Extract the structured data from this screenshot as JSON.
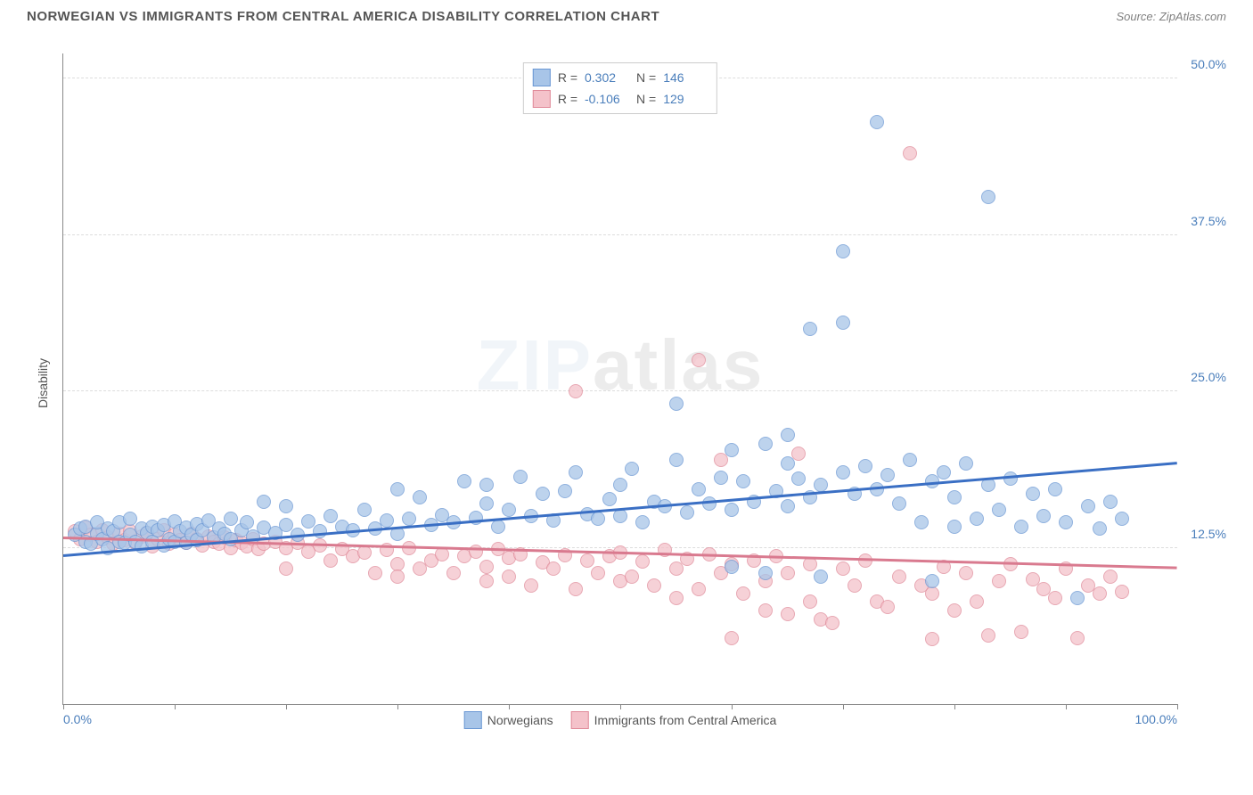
{
  "header": {
    "title": "NORWEGIAN VS IMMIGRANTS FROM CENTRAL AMERICA DISABILITY CORRELATION CHART",
    "source": "Source: ZipAtlas.com"
  },
  "watermark": {
    "left": "ZIP",
    "right": "atlas"
  },
  "chart": {
    "type": "scatter",
    "ylabel": "Disability",
    "xaxis": {
      "min": 0,
      "max": 100,
      "label_left": "0.0%",
      "label_right": "100.0%",
      "ticks": [
        0,
        10,
        20,
        30,
        40,
        50,
        60,
        70,
        80,
        90,
        100
      ]
    },
    "yaxis": {
      "min": 0,
      "max": 52,
      "ticks": [
        {
          "v": 12.5,
          "label": "12.5%"
        },
        {
          "v": 25.0,
          "label": "25.0%"
        },
        {
          "v": 37.5,
          "label": "37.5%"
        },
        {
          "v": 50.0,
          "label": "50.0%"
        }
      ]
    },
    "colors": {
      "series_a_fill": "#a8c5e8",
      "series_a_stroke": "#6b98d4",
      "series_b_fill": "#f4c2ca",
      "series_b_stroke": "#e08b9a",
      "trend_a": "#3a6fc4",
      "trend_b": "#d97a8f",
      "axis_text": "#4a7ebb",
      "grid": "#dddddd"
    },
    "stats": [
      {
        "series": "a",
        "R": "0.302",
        "N": "146"
      },
      {
        "series": "b",
        "R": "-0.106",
        "N": "129"
      }
    ],
    "legend": [
      {
        "series": "a",
        "label": "Norwegians"
      },
      {
        "series": "b",
        "label": "Immigrants from Central America"
      }
    ],
    "trendlines": {
      "a": {
        "y_at_x0": 11.8,
        "y_at_x100": 19.2
      },
      "b": {
        "y_at_x0": 13.2,
        "y_at_x100": 10.8
      }
    },
    "series_a": [
      [
        1,
        13.5
      ],
      [
        1.5,
        14
      ],
      [
        2,
        13
      ],
      [
        2,
        14.2
      ],
      [
        2.5,
        12.8
      ],
      [
        3,
        13.6
      ],
      [
        3,
        14.5
      ],
      [
        3.5,
        13.2
      ],
      [
        4,
        14
      ],
      [
        4,
        12.5
      ],
      [
        4.5,
        13.8
      ],
      [
        5,
        13
      ],
      [
        5,
        14.5
      ],
      [
        5.5,
        12.9
      ],
      [
        6,
        13.5
      ],
      [
        6,
        14.8
      ],
      [
        6.5,
        13
      ],
      [
        7,
        14
      ],
      [
        7,
        12.6
      ],
      [
        7.5,
        13.7
      ],
      [
        8,
        14.2
      ],
      [
        8,
        13
      ],
      [
        8.5,
        13.9
      ],
      [
        9,
        12.7
      ],
      [
        9,
        14.3
      ],
      [
        9.5,
        13.2
      ],
      [
        10,
        14.6
      ],
      [
        10,
        13
      ],
      [
        10.5,
        13.8
      ],
      [
        11,
        14.1
      ],
      [
        11,
        12.9
      ],
      [
        11.5,
        13.5
      ],
      [
        12,
        14.4
      ],
      [
        12,
        13.1
      ],
      [
        12.5,
        13.9
      ],
      [
        13,
        14.7
      ],
      [
        13.5,
        13.3
      ],
      [
        14,
        14
      ],
      [
        14.5,
        13.6
      ],
      [
        15,
        14.8
      ],
      [
        15,
        13.2
      ],
      [
        16,
        13.9
      ],
      [
        16.5,
        14.5
      ],
      [
        17,
        13.4
      ],
      [
        18,
        16.2
      ],
      [
        18,
        14.1
      ],
      [
        19,
        13.7
      ],
      [
        20,
        14.3
      ],
      [
        20,
        15.8
      ],
      [
        21,
        13.5
      ],
      [
        22,
        14.6
      ],
      [
        23,
        13.8
      ],
      [
        24,
        15
      ],
      [
        25,
        14.2
      ],
      [
        26,
        13.9
      ],
      [
        27,
        15.5
      ],
      [
        28,
        14
      ],
      [
        29,
        14.7
      ],
      [
        30,
        17.2
      ],
      [
        30,
        13.6
      ],
      [
        31,
        14.8
      ],
      [
        32,
        16.5
      ],
      [
        33,
        14.3
      ],
      [
        34,
        15.1
      ],
      [
        35,
        14.5
      ],
      [
        36,
        17.8
      ],
      [
        37,
        14.9
      ],
      [
        38,
        16
      ],
      [
        38,
        17.5
      ],
      [
        39,
        14.2
      ],
      [
        40,
        15.5
      ],
      [
        41,
        18.2
      ],
      [
        42,
        15
      ],
      [
        43,
        16.8
      ],
      [
        44,
        14.7
      ],
      [
        45,
        17
      ],
      [
        46,
        18.5
      ],
      [
        47,
        15.2
      ],
      [
        48,
        14.8
      ],
      [
        49,
        16.4
      ],
      [
        50,
        17.5
      ],
      [
        50,
        15
      ],
      [
        51,
        18.8
      ],
      [
        52,
        14.5
      ],
      [
        53,
        16.2
      ],
      [
        54,
        15.8
      ],
      [
        55,
        19.5
      ],
      [
        55,
        24
      ],
      [
        56,
        15.3
      ],
      [
        57,
        17.2
      ],
      [
        58,
        16
      ],
      [
        59,
        18.1
      ],
      [
        60,
        15.5
      ],
      [
        60,
        20.3
      ],
      [
        60,
        11
      ],
      [
        61,
        17.8
      ],
      [
        62,
        16.2
      ],
      [
        63,
        10.5
      ],
      [
        63,
        20.8
      ],
      [
        64,
        17
      ],
      [
        65,
        15.8
      ],
      [
        65,
        21.5
      ],
      [
        65,
        19.2
      ],
      [
        66,
        18
      ],
      [
        67,
        16.5
      ],
      [
        67,
        30
      ],
      [
        68,
        10.2
      ],
      [
        68,
        17.5
      ],
      [
        70,
        30.5
      ],
      [
        70,
        36.2
      ],
      [
        70,
        18.5
      ],
      [
        71,
        16.8
      ],
      [
        72,
        19
      ],
      [
        73,
        46.5
      ],
      [
        73,
        17.2
      ],
      [
        74,
        18.3
      ],
      [
        75,
        16
      ],
      [
        76,
        19.5
      ],
      [
        77,
        14.5
      ],
      [
        78,
        17.8
      ],
      [
        78,
        9.8
      ],
      [
        79,
        18.5
      ],
      [
        80,
        14.2
      ],
      [
        80,
        16.5
      ],
      [
        81,
        19.2
      ],
      [
        82,
        14.8
      ],
      [
        83,
        17.5
      ],
      [
        83,
        40.5
      ],
      [
        84,
        15.5
      ],
      [
        85,
        18
      ],
      [
        86,
        14.2
      ],
      [
        87,
        16.8
      ],
      [
        88,
        15
      ],
      [
        89,
        17.2
      ],
      [
        90,
        14.5
      ],
      [
        91,
        8.5
      ],
      [
        92,
        15.8
      ],
      [
        93,
        14
      ],
      [
        94,
        16.2
      ],
      [
        95,
        14.8
      ]
    ],
    "series_b": [
      [
        1,
        13.8
      ],
      [
        1.5,
        13.2
      ],
      [
        2,
        14.1
      ],
      [
        2.5,
        13.5
      ],
      [
        3,
        13
      ],
      [
        3.5,
        13.9
      ],
      [
        4,
        13.3
      ],
      [
        4.5,
        12.8
      ],
      [
        5,
        13.6
      ],
      [
        5.5,
        13.1
      ],
      [
        6,
        13.8
      ],
      [
        6.5,
        12.9
      ],
      [
        7,
        13.4
      ],
      [
        7.5,
        13.7
      ],
      [
        8,
        12.6
      ],
      [
        8.5,
        13.2
      ],
      [
        9,
        13.9
      ],
      [
        9.5,
        12.8
      ],
      [
        10,
        13.5
      ],
      [
        10.5,
        13.1
      ],
      [
        11,
        12.9
      ],
      [
        11.5,
        13.6
      ],
      [
        12,
        13.2
      ],
      [
        12.5,
        12.7
      ],
      [
        13,
        13.4
      ],
      [
        13.5,
        13
      ],
      [
        14,
        12.8
      ],
      [
        14.5,
        13.3
      ],
      [
        15,
        12.5
      ],
      [
        15.5,
        13.1
      ],
      [
        16,
        12.9
      ],
      [
        16.5,
        12.6
      ],
      [
        17,
        13.2
      ],
      [
        17.5,
        12.4
      ],
      [
        18,
        12.8
      ],
      [
        19,
        13
      ],
      [
        20,
        12.5
      ],
      [
        20,
        10.8
      ],
      [
        21,
        12.9
      ],
      [
        22,
        12.2
      ],
      [
        23,
        12.7
      ],
      [
        24,
        11.5
      ],
      [
        25,
        12.4
      ],
      [
        26,
        11.8
      ],
      [
        27,
        12.1
      ],
      [
        28,
        10.5
      ],
      [
        29,
        12.3
      ],
      [
        30,
        11.2
      ],
      [
        30,
        10.2
      ],
      [
        31,
        12.5
      ],
      [
        32,
        10.8
      ],
      [
        33,
        11.5
      ],
      [
        34,
        12
      ],
      [
        35,
        10.5
      ],
      [
        36,
        11.8
      ],
      [
        37,
        12.2
      ],
      [
        38,
        9.8
      ],
      [
        38,
        11
      ],
      [
        39,
        12.4
      ],
      [
        40,
        10.2
      ],
      [
        40,
        11.7
      ],
      [
        41,
        12
      ],
      [
        42,
        9.5
      ],
      [
        43,
        11.3
      ],
      [
        44,
        10.8
      ],
      [
        45,
        11.9
      ],
      [
        46,
        9.2
      ],
      [
        46,
        25
      ],
      [
        47,
        11.5
      ],
      [
        48,
        10.5
      ],
      [
        49,
        11.8
      ],
      [
        50,
        9.8
      ],
      [
        50,
        12.1
      ],
      [
        51,
        10.2
      ],
      [
        52,
        11.4
      ],
      [
        53,
        9.5
      ],
      [
        54,
        12.3
      ],
      [
        55,
        10.8
      ],
      [
        55,
        8.5
      ],
      [
        56,
        11.6
      ],
      [
        57,
        9.2
      ],
      [
        57,
        27.5
      ],
      [
        58,
        12
      ],
      [
        59,
        10.5
      ],
      [
        59,
        19.5
      ],
      [
        60,
        5.3
      ],
      [
        60,
        11.2
      ],
      [
        61,
        8.8
      ],
      [
        62,
        11.5
      ],
      [
        63,
        7.5
      ],
      [
        63,
        9.8
      ],
      [
        64,
        11.8
      ],
      [
        65,
        7.2
      ],
      [
        65,
        10.5
      ],
      [
        66,
        20
      ],
      [
        67,
        8.2
      ],
      [
        67,
        11.2
      ],
      [
        68,
        6.8
      ],
      [
        69,
        6.5
      ],
      [
        70,
        10.8
      ],
      [
        71,
        9.5
      ],
      [
        72,
        11.5
      ],
      [
        73,
        8.2
      ],
      [
        74,
        7.8
      ],
      [
        75,
        10.2
      ],
      [
        76,
        44
      ],
      [
        77,
        9.5
      ],
      [
        78,
        8.8
      ],
      [
        78,
        5.2
      ],
      [
        79,
        11
      ],
      [
        80,
        7.5
      ],
      [
        81,
        10.5
      ],
      [
        82,
        8.2
      ],
      [
        83,
        5.5
      ],
      [
        84,
        9.8
      ],
      [
        85,
        11.2
      ],
      [
        86,
        5.8
      ],
      [
        87,
        10
      ],
      [
        88,
        9.2
      ],
      [
        89,
        8.5
      ],
      [
        90,
        10.8
      ],
      [
        91,
        5.3
      ],
      [
        92,
        9.5
      ],
      [
        93,
        8.8
      ],
      [
        94,
        10.2
      ],
      [
        95,
        9
      ]
    ]
  }
}
